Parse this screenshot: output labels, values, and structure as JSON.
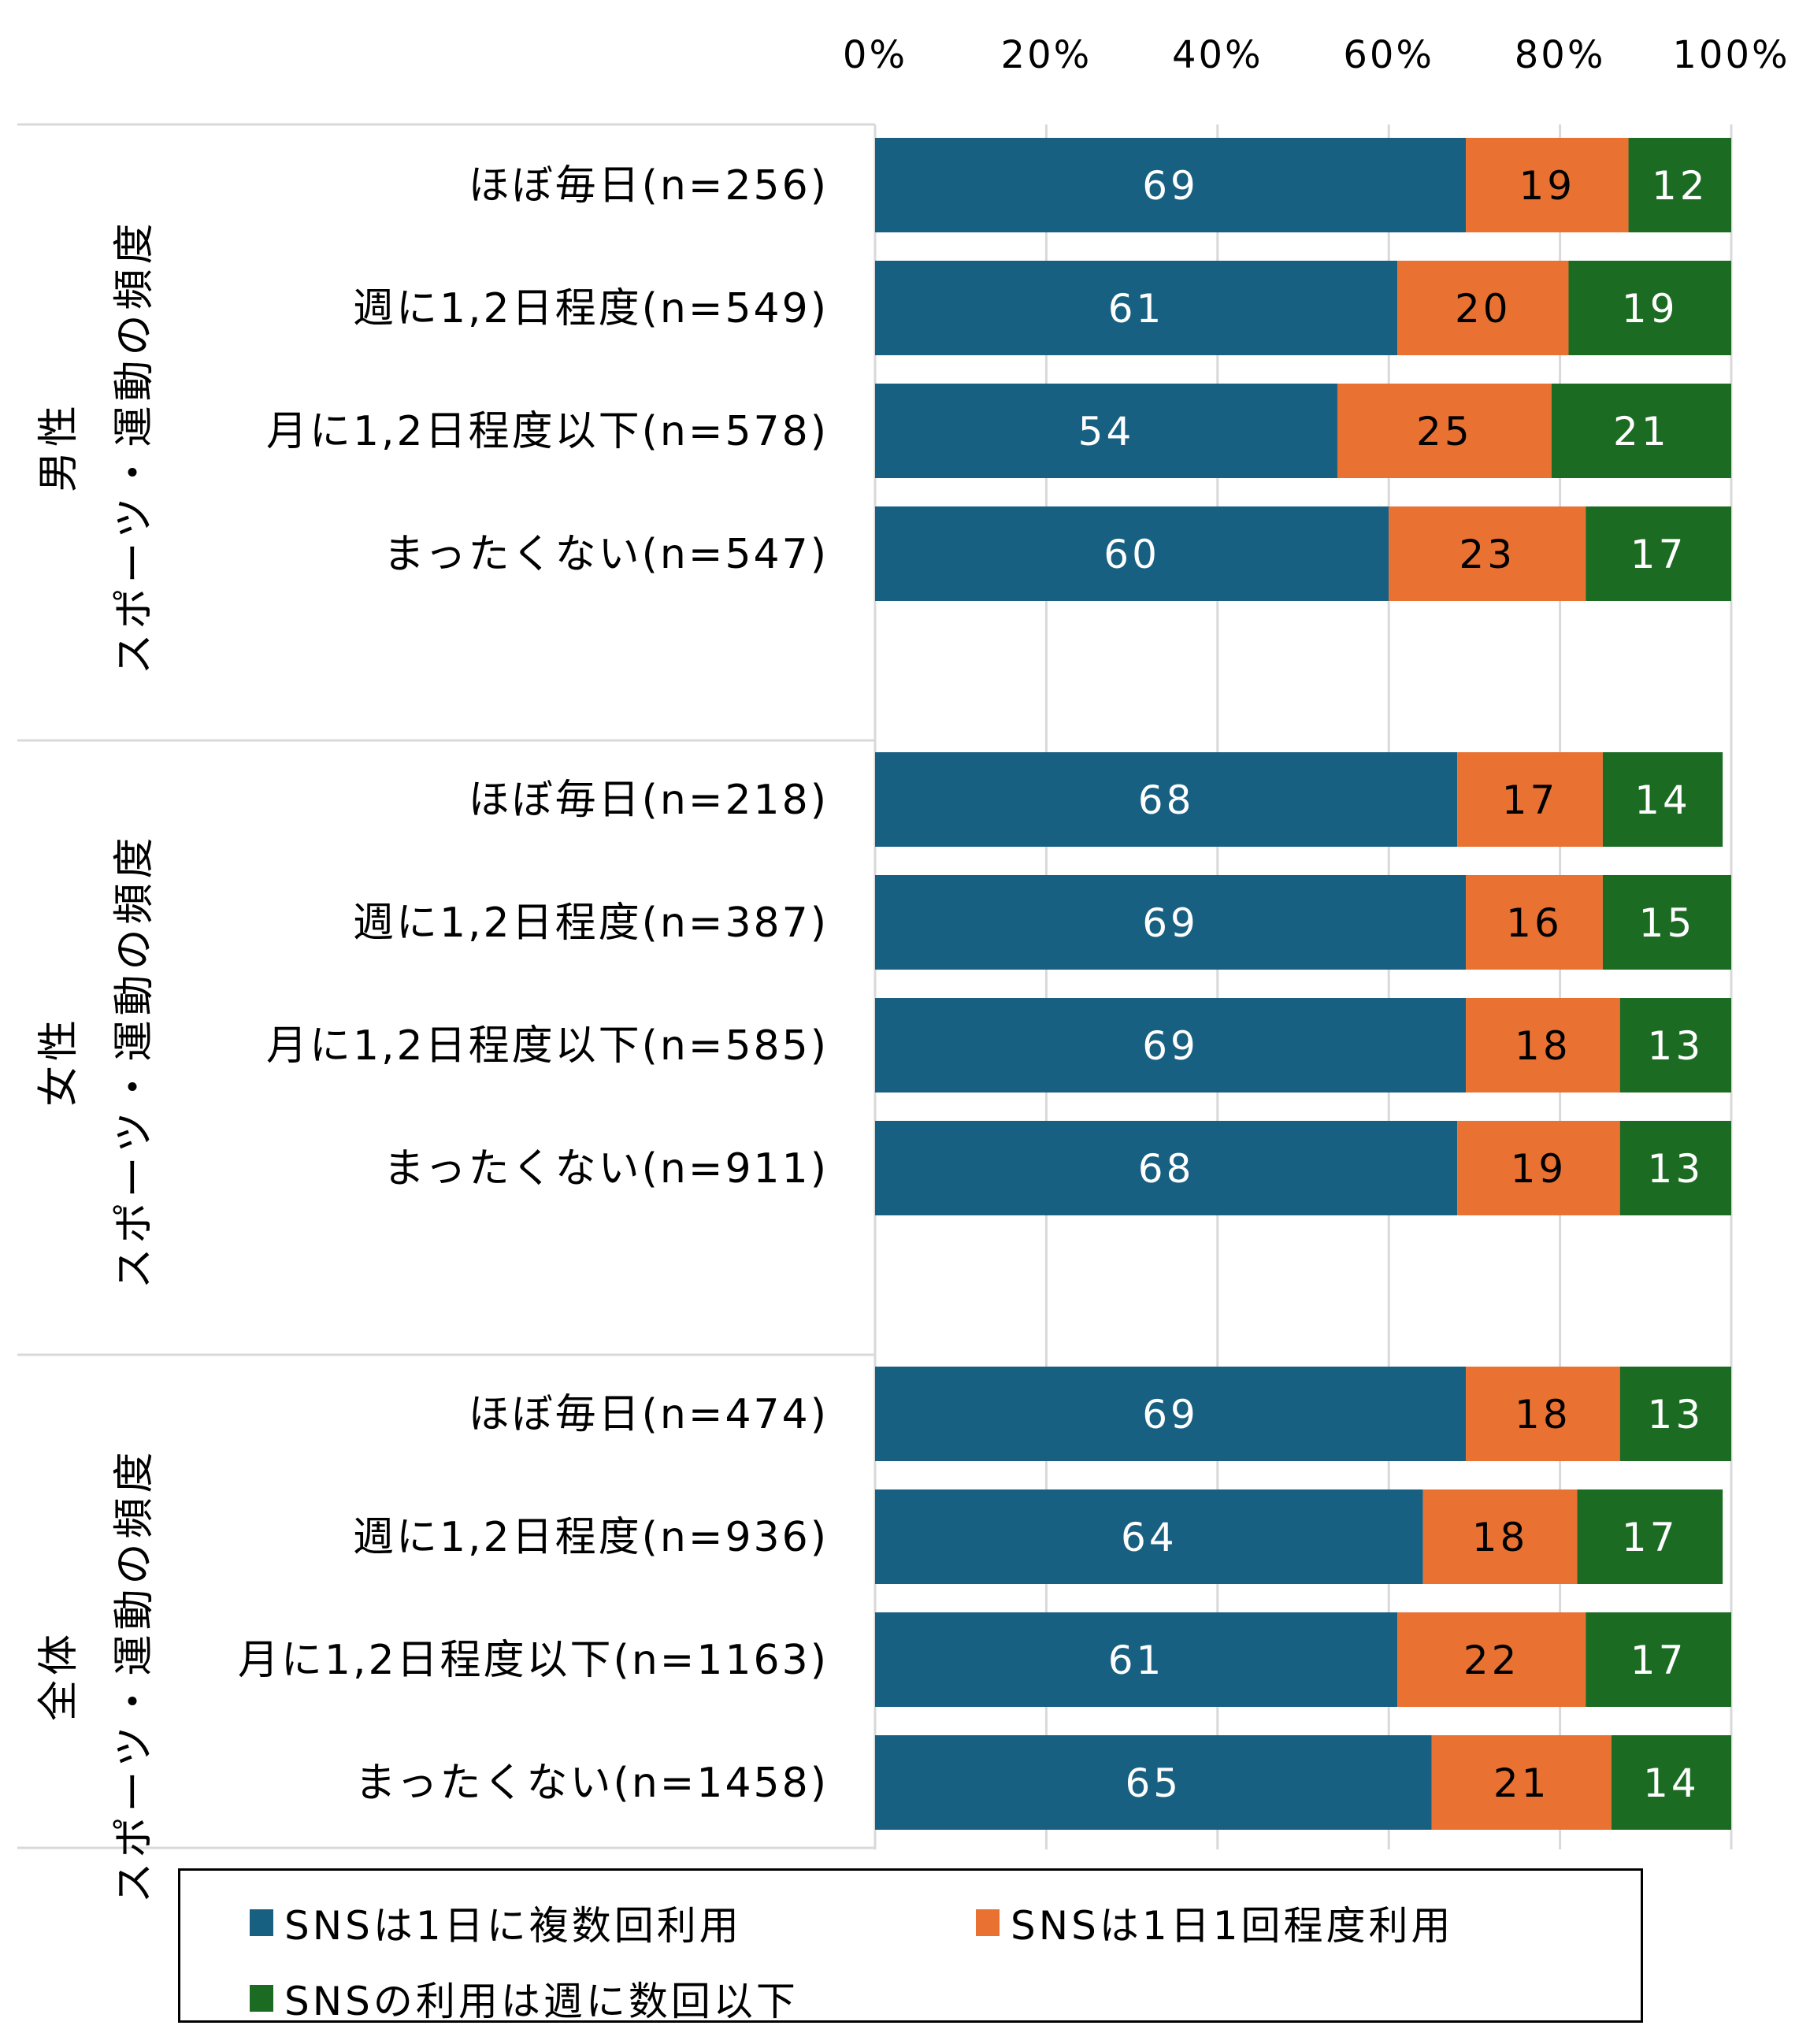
{
  "chart_data": {
    "type": "bar",
    "orientation": "horizontal",
    "stacked": true,
    "title": "",
    "xlabel": "",
    "ylabel": "",
    "xlim": [
      0,
      100
    ],
    "x_ticks": [
      "0%",
      "20%",
      "40%",
      "60%",
      "80%",
      "100%"
    ],
    "grid": true,
    "legend_position": "bottom",
    "groups": [
      {
        "name": "男性",
        "subtitle": "スポーツ・運動の頻度",
        "categories": [
          "ほぼ毎日(n=256)",
          "週に1,2日程度(n=549)",
          "月に1,2日程度以下(n=578)",
          "まったくない(n=547)"
        ]
      },
      {
        "name": "女性",
        "subtitle": "スポーツ・運動の頻度",
        "categories": [
          "ほぼ毎日(n=218)",
          "週に1,2日程度(n=387)",
          "月に1,2日程度以下(n=585)",
          "まったくない(n=911)"
        ]
      },
      {
        "name": "全体",
        "subtitle": "スポーツ・運動の頻度",
        "categories": [
          "ほぼ毎日(n=474)",
          "週に1,2日程度(n=936)",
          "月に1,2日程度以下(n=1163)",
          "まったくない(n=1458)"
        ]
      }
    ],
    "series": [
      {
        "name": "SNSは1日に複数回利用",
        "color": "#186082",
        "label_color": "#ffffff",
        "values": [
          69,
          61,
          54,
          60,
          68,
          69,
          69,
          68,
          69,
          64,
          61,
          65
        ]
      },
      {
        "name": "SNSは1日1回程度利用",
        "color": "#E97132",
        "label_color": "#000000",
        "values": [
          19,
          20,
          25,
          23,
          17,
          16,
          18,
          19,
          18,
          18,
          22,
          21
        ]
      },
      {
        "name": "SNSの利用は週に数回以下",
        "color": "#1C6B23",
        "label_color": "#ffffff",
        "values": [
          12,
          19,
          21,
          17,
          14,
          15,
          13,
          13,
          13,
          17,
          17,
          14
        ]
      }
    ]
  }
}
